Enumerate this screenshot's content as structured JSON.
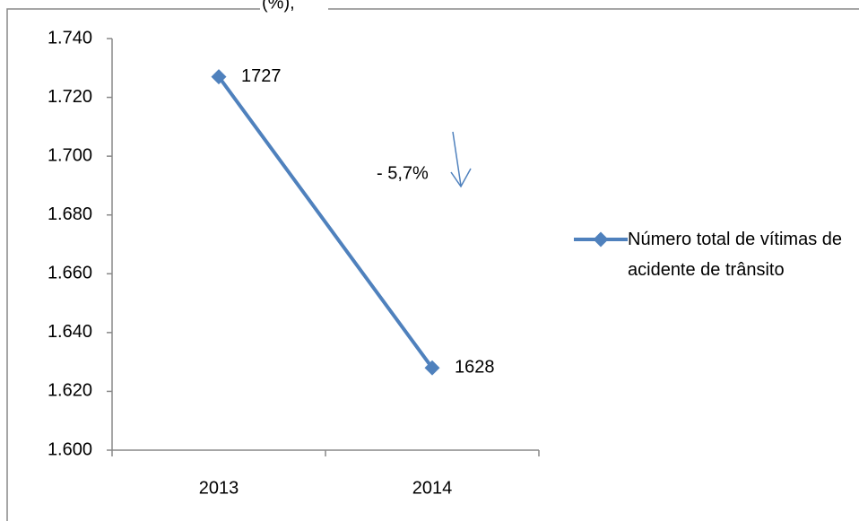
{
  "chart_data": {
    "type": "line",
    "title": "(%),",
    "categories": [
      "2013",
      "2014"
    ],
    "series": [
      {
        "name": "Número total de vítimas de acidente de trânsito",
        "color": "#4f81bd",
        "values": [
          1727,
          1628
        ]
      }
    ],
    "ylim": [
      1600,
      1740
    ],
    "yticks": [
      {
        "value": 1600,
        "label": "1.600"
      },
      {
        "value": 1620,
        "label": "1.620"
      },
      {
        "value": 1640,
        "label": "1.640"
      },
      {
        "value": 1660,
        "label": "1.660"
      },
      {
        "value": 1680,
        "label": "1.680"
      },
      {
        "value": 1700,
        "label": "1.700"
      },
      {
        "value": 1720,
        "label": "1.720"
      },
      {
        "value": 1740,
        "label": "1.740"
      }
    ],
    "annotation": "- 5,7%",
    "legend": "right",
    "grid": false
  }
}
